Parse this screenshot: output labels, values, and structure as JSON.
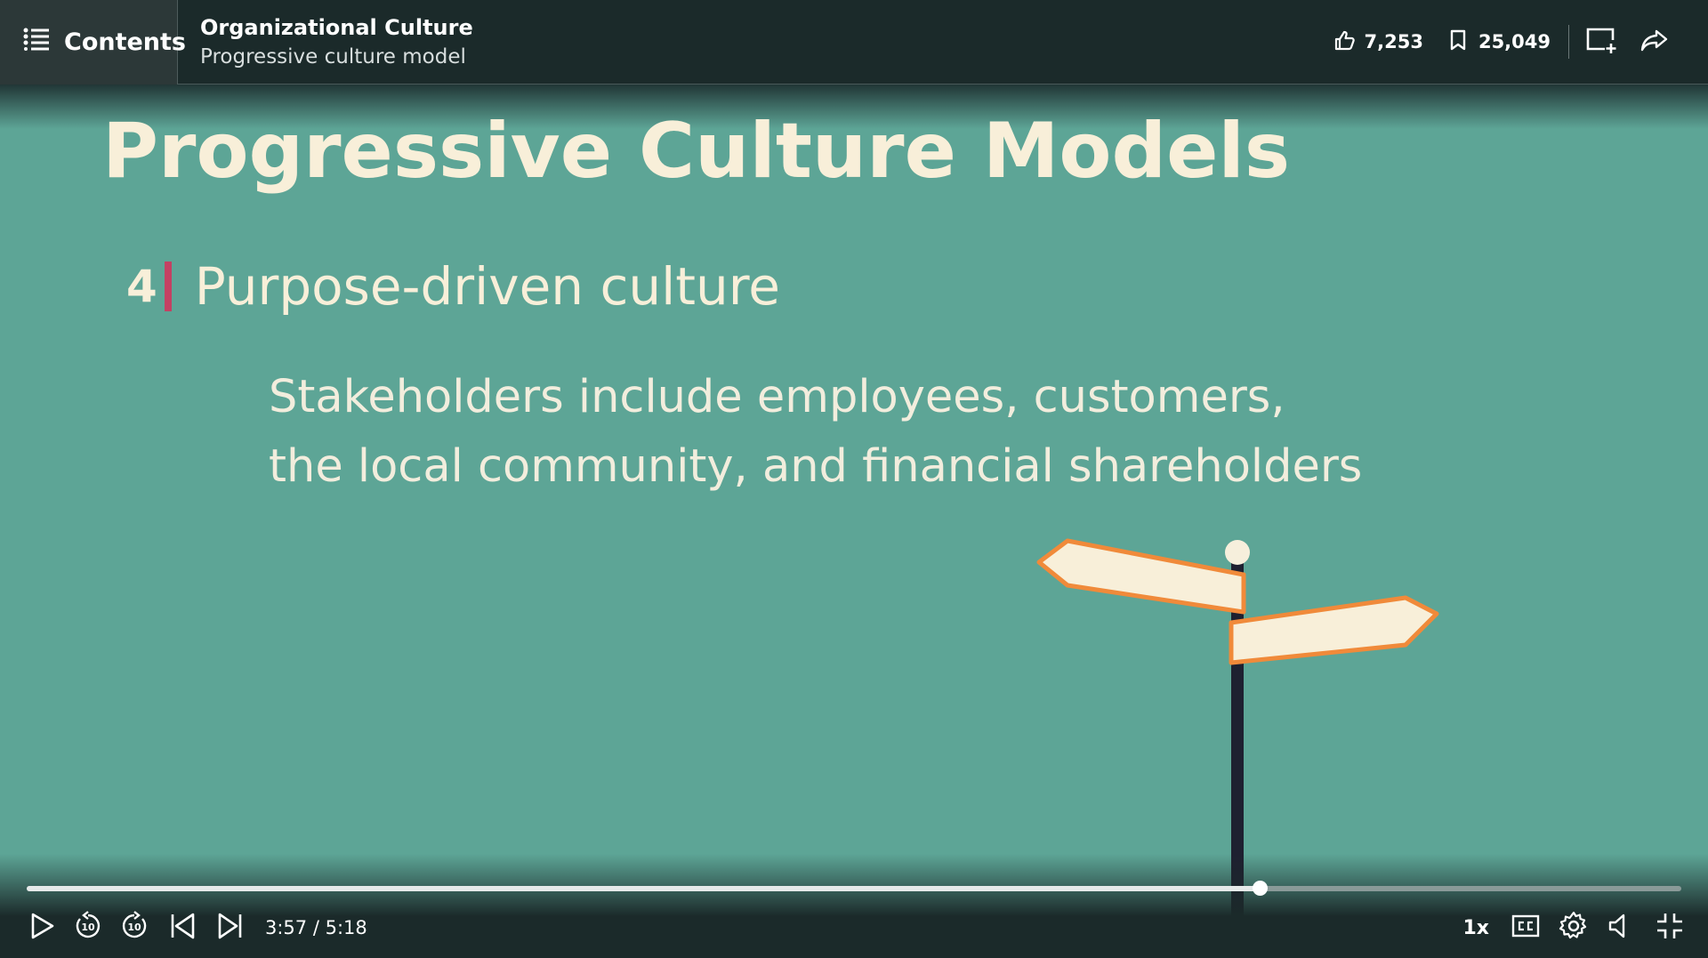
{
  "header": {
    "contents_label": "Contents",
    "course_title": "Organizational Culture",
    "video_title": "Progressive culture model",
    "likes": "7,253",
    "saves": "25,049"
  },
  "slide": {
    "title": "Progressive Culture Models",
    "item_number": "4",
    "item_text": "Purpose-driven culture",
    "body_lines": [
      "Stakeholders include employees, customers,",
      "the local community, and financial shareholders"
    ]
  },
  "player": {
    "current_time": "3:57",
    "duration": "5:18",
    "time_display": "3:57 / 5:18",
    "progress_fraction": 0.745,
    "speed": "1x",
    "skip_seconds": "10"
  },
  "colors": {
    "slide_bg": "#5da596",
    "bar_bg": "#1b2a2a",
    "title_text": "#f8efd9",
    "accent_bar": "#c44163",
    "sign_outline": "#f08a3a"
  },
  "icons": {
    "contents": "list-icon",
    "likes": "thumbs-up-icon",
    "saves": "bookmark-icon",
    "add_to_collection": "add-to-collection-icon",
    "share": "share-arrow-icon",
    "play": "play-icon",
    "rewind": "rewind-10-icon",
    "forward": "forward-10-icon",
    "previous": "previous-icon",
    "next": "next-icon",
    "captions": "cc-icon",
    "settings": "gear-icon",
    "volume": "volume-icon",
    "exit_fullscreen": "exit-fullscreen-icon"
  }
}
